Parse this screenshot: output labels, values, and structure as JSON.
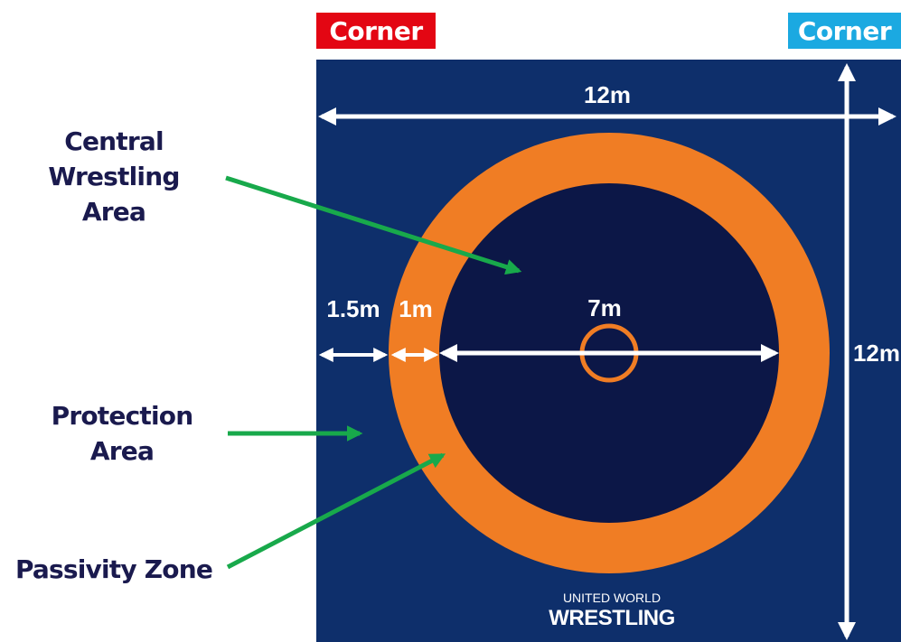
{
  "corners": {
    "red": {
      "label": "Corner",
      "color": "#e30613"
    },
    "blue": {
      "label": "Corner",
      "color": "#1ba9e1"
    }
  },
  "labels": {
    "central_wrestling_area": [
      "Central Wrestling",
      "Area"
    ],
    "protection_area": [
      "Protection",
      "Area"
    ],
    "passivity_zone": "Passivity Zone"
  },
  "dimensions": {
    "mat_width": "12m",
    "mat_height": "12m",
    "protection_width": "1.5m",
    "passivity_width": "1m",
    "central_diameter": "7m"
  },
  "logo": {
    "line1": "UNITED WORLD",
    "line2": "WRESTLING"
  },
  "colors": {
    "mat": "#0e2f6b",
    "central_area": "#0c1747",
    "passivity_zone": "#f07d24",
    "pointer_arrows": "#18a94b",
    "dimension_arrows": "#ffffff",
    "label_text": "#1a1a4e"
  }
}
